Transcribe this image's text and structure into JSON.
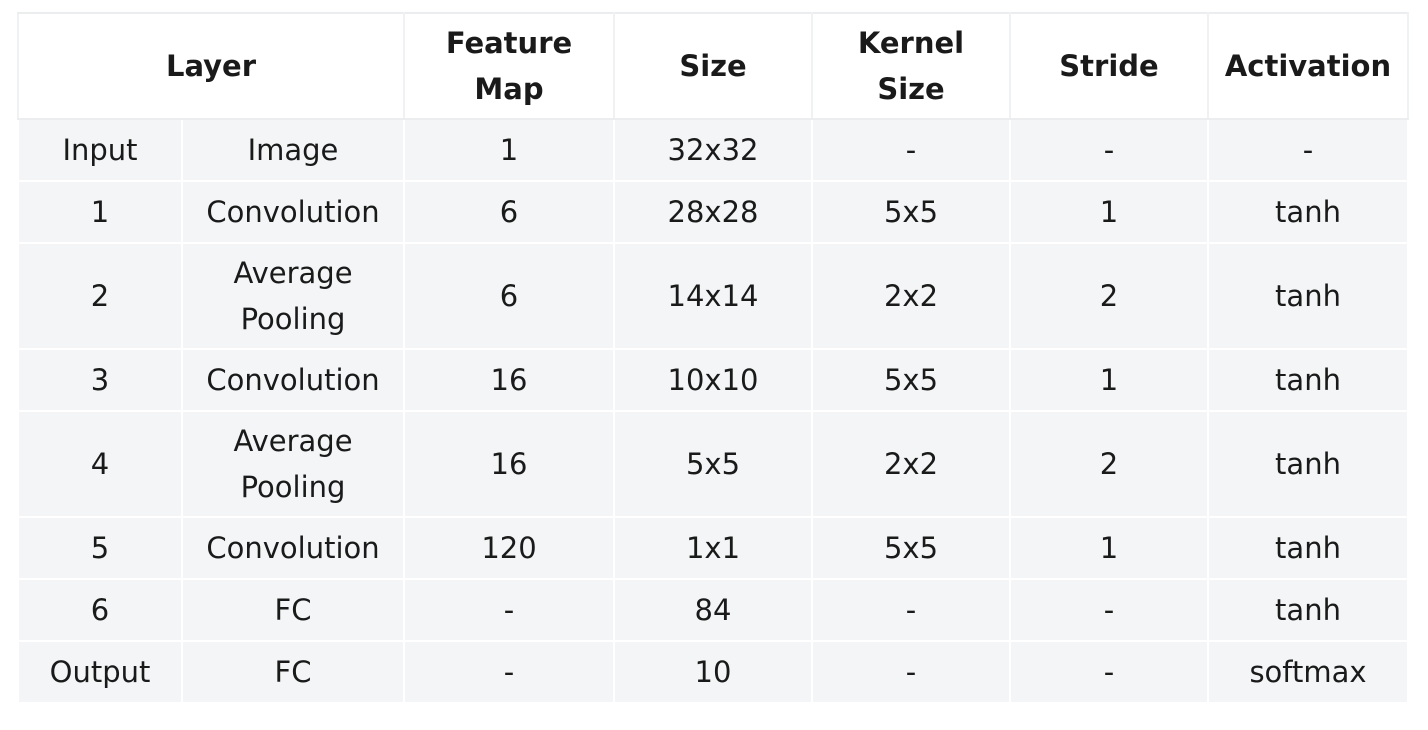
{
  "table": {
    "headers": {
      "layer": "Layer",
      "feature_map": [
        "Feature",
        "Map"
      ],
      "size": "Size",
      "kernel_size": [
        "Kernel",
        "Size"
      ],
      "stride": "Stride",
      "activation": "Activation"
    },
    "rows": [
      {
        "layer": "Input",
        "type": [
          "Image"
        ],
        "feature_map": "1",
        "size": "32x32",
        "kernel": "-",
        "stride": "-",
        "activation": "-"
      },
      {
        "layer": "1",
        "type": [
          "Convolution"
        ],
        "feature_map": "6",
        "size": "28x28",
        "kernel": "5x5",
        "stride": "1",
        "activation": "tanh"
      },
      {
        "layer": "2",
        "type": [
          "Average",
          "Pooling"
        ],
        "feature_map": "6",
        "size": "14x14",
        "kernel": "2x2",
        "stride": "2",
        "activation": "tanh"
      },
      {
        "layer": "3",
        "type": [
          "Convolution"
        ],
        "feature_map": "16",
        "size": "10x10",
        "kernel": "5x5",
        "stride": "1",
        "activation": "tanh"
      },
      {
        "layer": "4",
        "type": [
          "Average",
          "Pooling"
        ],
        "feature_map": "16",
        "size": "5x5",
        "kernel": "2x2",
        "stride": "2",
        "activation": "tanh"
      },
      {
        "layer": "5",
        "type": [
          "Convolution"
        ],
        "feature_map": "120",
        "size": "1x1",
        "kernel": "5x5",
        "stride": "1",
        "activation": "tanh"
      },
      {
        "layer": "6",
        "type": [
          "FC"
        ],
        "feature_map": "-",
        "size": "84",
        "kernel": "-",
        "stride": "-",
        "activation": "tanh"
      },
      {
        "layer": "Output",
        "type": [
          "FC"
        ],
        "feature_map": "-",
        "size": "10",
        "kernel": "-",
        "stride": "-",
        "activation": "softmax"
      }
    ]
  }
}
